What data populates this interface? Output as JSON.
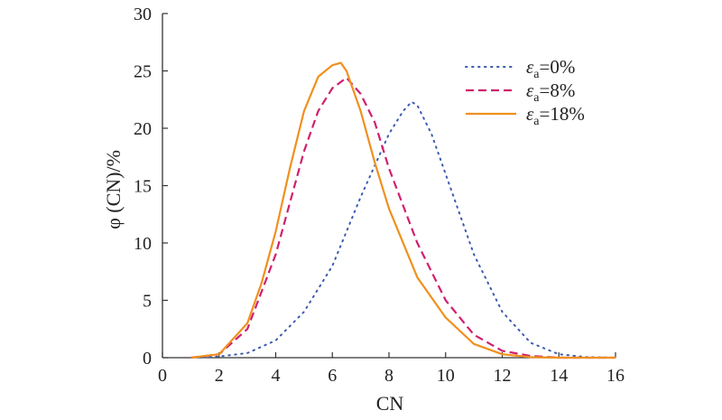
{
  "chart_data": {
    "type": "line",
    "xlabel": "CN",
    "ylabel": "φ (CN)/%",
    "xlim": [
      0,
      16
    ],
    "ylim": [
      0,
      30
    ],
    "xticks": [
      0,
      2,
      4,
      6,
      8,
      10,
      12,
      14,
      16
    ],
    "yticks": [
      0,
      5,
      10,
      15,
      20,
      25,
      30
    ],
    "grid": false,
    "legend_position": "top-right",
    "series": [
      {
        "name": "εa=0%",
        "legend": {
          "symbol": "ε",
          "sub": "a",
          "rest": "=0%"
        },
        "color": "#3a5bb0",
        "style": "dotted",
        "x": [
          1,
          2,
          3,
          4,
          5,
          6,
          7,
          8,
          8.5,
          8.8,
          9,
          9.5,
          10,
          11,
          12,
          13,
          14,
          15,
          16
        ],
        "y": [
          0,
          0.1,
          0.4,
          1.5,
          4,
          8,
          14,
          19.5,
          21.5,
          22.3,
          22,
          19.5,
          16,
          9,
          4,
          1.3,
          0.3,
          0.05,
          0
        ]
      },
      {
        "name": "εa=8%",
        "legend": {
          "symbol": "ε",
          "sub": "a",
          "rest": "=8%"
        },
        "color": "#d0206e",
        "style": "dashed",
        "x": [
          1,
          2,
          3,
          4,
          5,
          5.5,
          6,
          6.5,
          7,
          7.5,
          8,
          9,
          10,
          11,
          12,
          13,
          14,
          15,
          16
        ],
        "y": [
          0,
          0.3,
          2.5,
          9,
          18,
          21.5,
          23.5,
          24.4,
          23,
          20.5,
          16.5,
          10,
          5,
          2,
          0.6,
          0.15,
          0,
          0,
          0
        ]
      },
      {
        "name": "εa=18%",
        "legend": {
          "symbol": "ε",
          "sub": "a",
          "rest": "=18%"
        },
        "color": "#f0901e",
        "style": "solid",
        "x": [
          1,
          2,
          3,
          3.5,
          4,
          4.5,
          5,
          5.5,
          6,
          6.3,
          6.5,
          7,
          7.5,
          8,
          9,
          10,
          11,
          12,
          13,
          14,
          15,
          16
        ],
        "y": [
          0,
          0.3,
          3,
          6.5,
          11,
          16.5,
          21.5,
          24.5,
          25.5,
          25.7,
          25,
          21.5,
          17,
          13,
          7,
          3.5,
          1.2,
          0.3,
          0.05,
          0,
          0,
          0
        ]
      }
    ]
  }
}
